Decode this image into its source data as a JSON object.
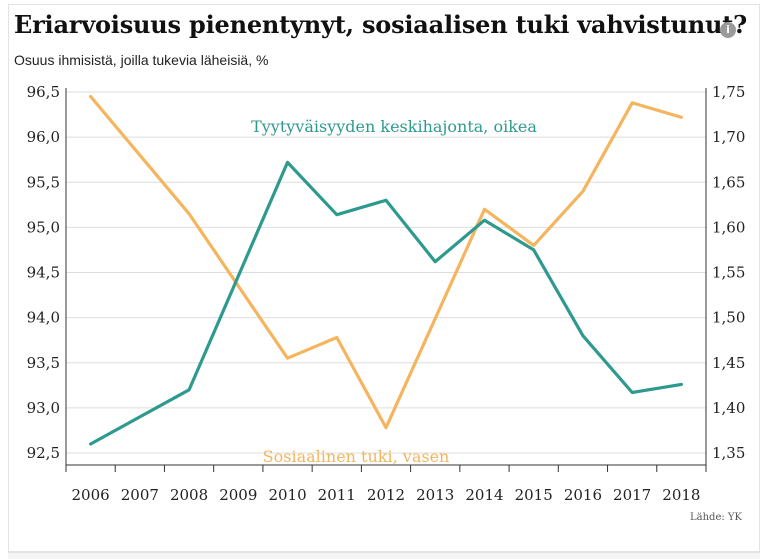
{
  "header": {
    "title": "Eriarvoisuus pienentynyt, sosiaalisen tuki vahvistunut?",
    "subtitle": "Osuus ihmisistä, joilla tukevia läheisiä, %",
    "info_icon": "info-icon",
    "info_glyph": "i"
  },
  "footer": {
    "source": "Lähde: YK"
  },
  "colors": {
    "social_support": "#F5B55E",
    "happiness_sd": "#2E9A8E",
    "grid": "#dedede",
    "axis": "#333333"
  },
  "chart_data": {
    "type": "line",
    "title": "Eriarvoisuus pienentynyt, sosiaalisen tuki vahvistunut?",
    "subtitle": "Osuus ihmisistä, joilla tukevia läheisiä, %",
    "categories": [
      "2006",
      "2007",
      "2008",
      "2009",
      "2010",
      "2011",
      "2012",
      "2013",
      "2014",
      "2015",
      "2016",
      "2017",
      "2018"
    ],
    "left_axis": {
      "ylim": [
        92.5,
        96.5
      ],
      "ticks": [
        "92,5",
        "93,0",
        "93,5",
        "94,0",
        "94,5",
        "95,0",
        "95,5",
        "96,0",
        "96,5"
      ]
    },
    "right_axis": {
      "ylim": [
        1.35,
        1.75
      ],
      "ticks": [
        "1,35",
        "1,40",
        "1,45",
        "1,50",
        "1,55",
        "1,60",
        "1,65",
        "1,70",
        "1,75"
      ]
    },
    "series": [
      {
        "name": "Sosiaalinen tuki, vasen",
        "axis": "left",
        "color": "#F5B55E",
        "values": [
          96.45,
          null,
          95.15,
          null,
          93.55,
          93.78,
          92.78,
          null,
          95.2,
          94.8,
          95.4,
          96.38,
          96.22
        ]
      },
      {
        "name": "Tyytyväisyyden keskihajonta, oikea",
        "axis": "right",
        "color": "#2E9A8E",
        "values": [
          1.36,
          null,
          1.42,
          null,
          1.672,
          1.614,
          1.63,
          1.562,
          1.608,
          1.575,
          1.48,
          1.417,
          1.426
        ]
      }
    ],
    "annotations": [
      {
        "text": "Tyytyväisyyden keskihajonta, oikea",
        "series": "Tyytyväisyyden keskihajonta, oikea"
      },
      {
        "text": "Sosiaalinen tuki, vasen",
        "series": "Sosiaalinen tuki, vasen"
      }
    ],
    "grid": true,
    "legend": "inline-labels"
  }
}
